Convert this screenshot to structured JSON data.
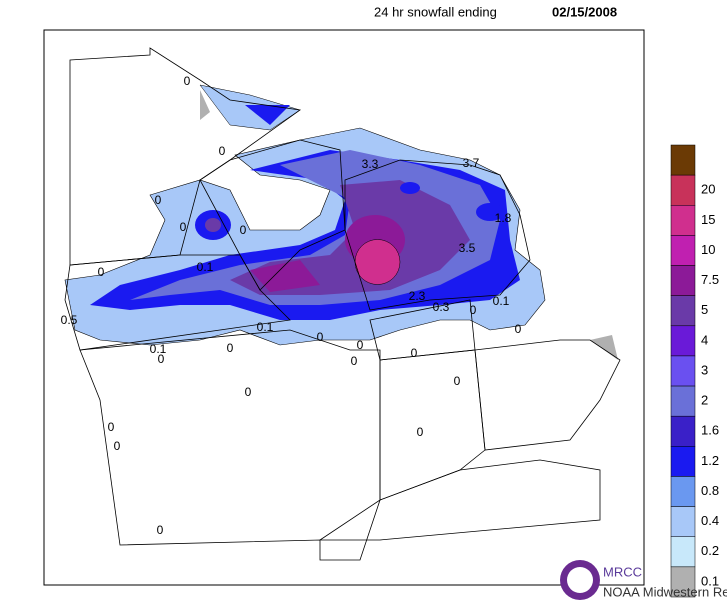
{
  "header": {
    "title": "24 hr snowfall ending",
    "date": "02/15/2008"
  },
  "legend": {
    "top_color": "#6b3a05",
    "items": [
      {
        "label": "20",
        "color": "#c8325a"
      },
      {
        "label": "15",
        "color": "#d02f8e"
      },
      {
        "label": "10",
        "color": "#c020b0"
      },
      {
        "label": "7.5",
        "color": "#8c1a98"
      },
      {
        "label": "5",
        "color": "#6a3aa8"
      },
      {
        "label": "4",
        "color": "#6a1ad8"
      },
      {
        "label": "3",
        "color": "#6a50f0"
      },
      {
        "label": "2",
        "color": "#6a70d8"
      },
      {
        "label": "1.6",
        "color": "#3a20c8"
      },
      {
        "label": "1.2",
        "color": "#1a1af0"
      },
      {
        "label": "0.8",
        "color": "#6a98f0"
      },
      {
        "label": "0.4",
        "color": "#a8c8f8"
      },
      {
        "label": "0.2",
        "color": "#c8e8fa"
      },
      {
        "label": "0.1",
        "color": "#b0b0b0"
      }
    ]
  },
  "stations": [
    "0",
    "0",
    "0",
    "0",
    "0",
    "0.1",
    "0",
    "3.3",
    "3.7",
    "1.8",
    "3.5",
    "2.3",
    "0.3",
    "0.1",
    "0",
    "0",
    "0.5",
    "0.1",
    "0",
    "0.1",
    "0",
    "0",
    "0",
    "0",
    "0",
    "0",
    "0",
    "0",
    "0",
    "0",
    "0"
  ],
  "logo": {
    "name": "MRCC",
    "subtitle": "NOAA Midwestern Regional Climate Center"
  }
}
